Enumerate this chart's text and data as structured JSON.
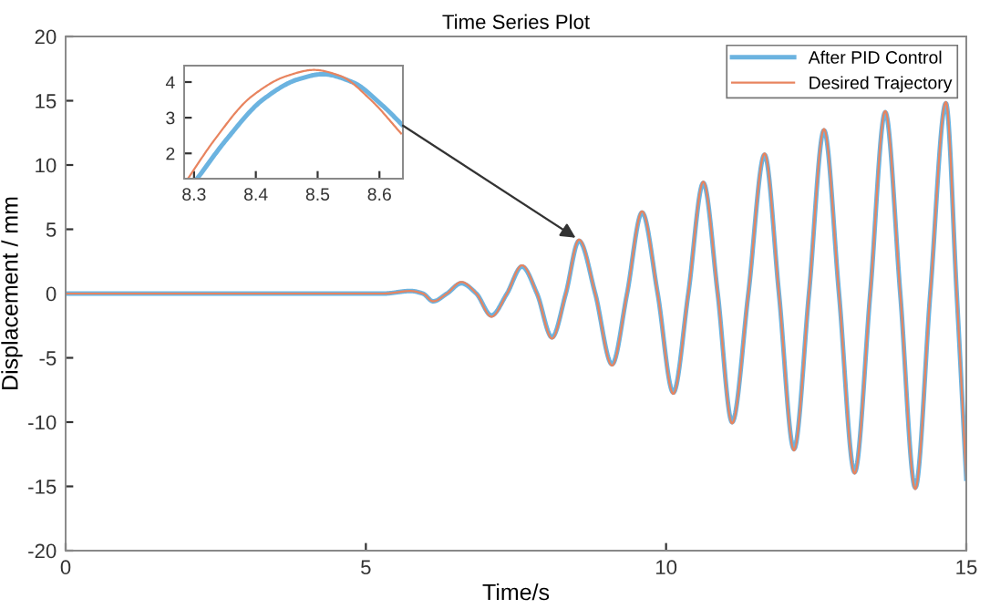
{
  "chart_data": [
    {
      "type": "line",
      "title": "Time Series Plot",
      "xlabel": "Time/s",
      "ylabel": "Displacement / mm",
      "xlim": [
        0,
        15
      ],
      "ylim": [
        -20,
        20
      ],
      "xticks": [
        0,
        5,
        10,
        15
      ],
      "yticks": [
        -20,
        -15,
        -10,
        -5,
        0,
        5,
        10,
        15,
        20
      ],
      "grid": false,
      "legend": "top right",
      "marker": "none",
      "line_style": "solid",
      "x": [
        0,
        5.3,
        5.74,
        5.95,
        6.12,
        6.35,
        6.59,
        6.84,
        7.09,
        7.35,
        7.6,
        7.85,
        8.1,
        8.33,
        8.55,
        8.82,
        9.1,
        9.35,
        9.6,
        9.86,
        10.12,
        10.37,
        10.62,
        10.86,
        11.1,
        11.37,
        11.64,
        11.88,
        12.13,
        12.38,
        12.63,
        12.88,
        13.14,
        13.4,
        13.65,
        13.9,
        14.15,
        14.4,
        14.66,
        14.84,
        15
      ],
      "series": [
        {
          "name": "After PID Control",
          "color": "#6bb3e0",
          "values": [
            0,
            0,
            0.2,
            0,
            -0.6,
            0,
            0.8,
            0,
            -1.7,
            0,
            2.1,
            0,
            -3.4,
            0,
            4.1,
            0,
            -5.5,
            0,
            6.3,
            0,
            -7.7,
            0,
            8.6,
            0,
            -10.0,
            0,
            10.8,
            0,
            -12.1,
            0,
            12.7,
            0,
            -13.9,
            0,
            14.1,
            0,
            -15.1,
            0,
            14.8,
            0,
            -14.4
          ]
        },
        {
          "name": "Desired Trajectory",
          "color": "#e8845f",
          "values": [
            0,
            0,
            0.2,
            0,
            -0.6,
            0,
            0.9,
            0,
            -1.8,
            0,
            2.2,
            0,
            -3.5,
            0,
            4.2,
            0,
            -5.6,
            0,
            6.4,
            0,
            -7.8,
            0,
            8.7,
            0,
            -10.1,
            0,
            10.9,
            0,
            -12.2,
            0,
            12.8,
            0,
            -14.0,
            0,
            14.2,
            0,
            -15.2,
            0,
            14.9,
            0,
            -14.4
          ]
        }
      ]
    },
    {
      "type": "line",
      "xlim": [
        8.284,
        8.638
      ],
      "ylim": [
        1.29,
        4.46
      ],
      "xticks": [
        8.3,
        8.4,
        8.5,
        8.6
      ],
      "yticks": [
        2,
        3,
        4
      ],
      "grid": false,
      "legend": false,
      "marker": "none",
      "line_style": "solid",
      "series": [
        {
          "color": "#6bb3e0",
          "x": [
            8.305,
            8.353,
            8.411,
            8.469,
            8.508,
            8.556,
            8.605,
            8.638
          ],
          "values": [
            1.29,
            2.4,
            3.5,
            4.08,
            4.22,
            4.0,
            3.34,
            2.78
          ]
        },
        {
          "color": "#e8845f",
          "x": [
            8.29,
            8.334,
            8.392,
            8.45,
            8.494,
            8.537,
            8.586,
            8.635
          ],
          "values": [
            1.29,
            2.4,
            3.58,
            4.17,
            4.34,
            4.17,
            3.5,
            2.56
          ]
        }
      ]
    }
  ]
}
